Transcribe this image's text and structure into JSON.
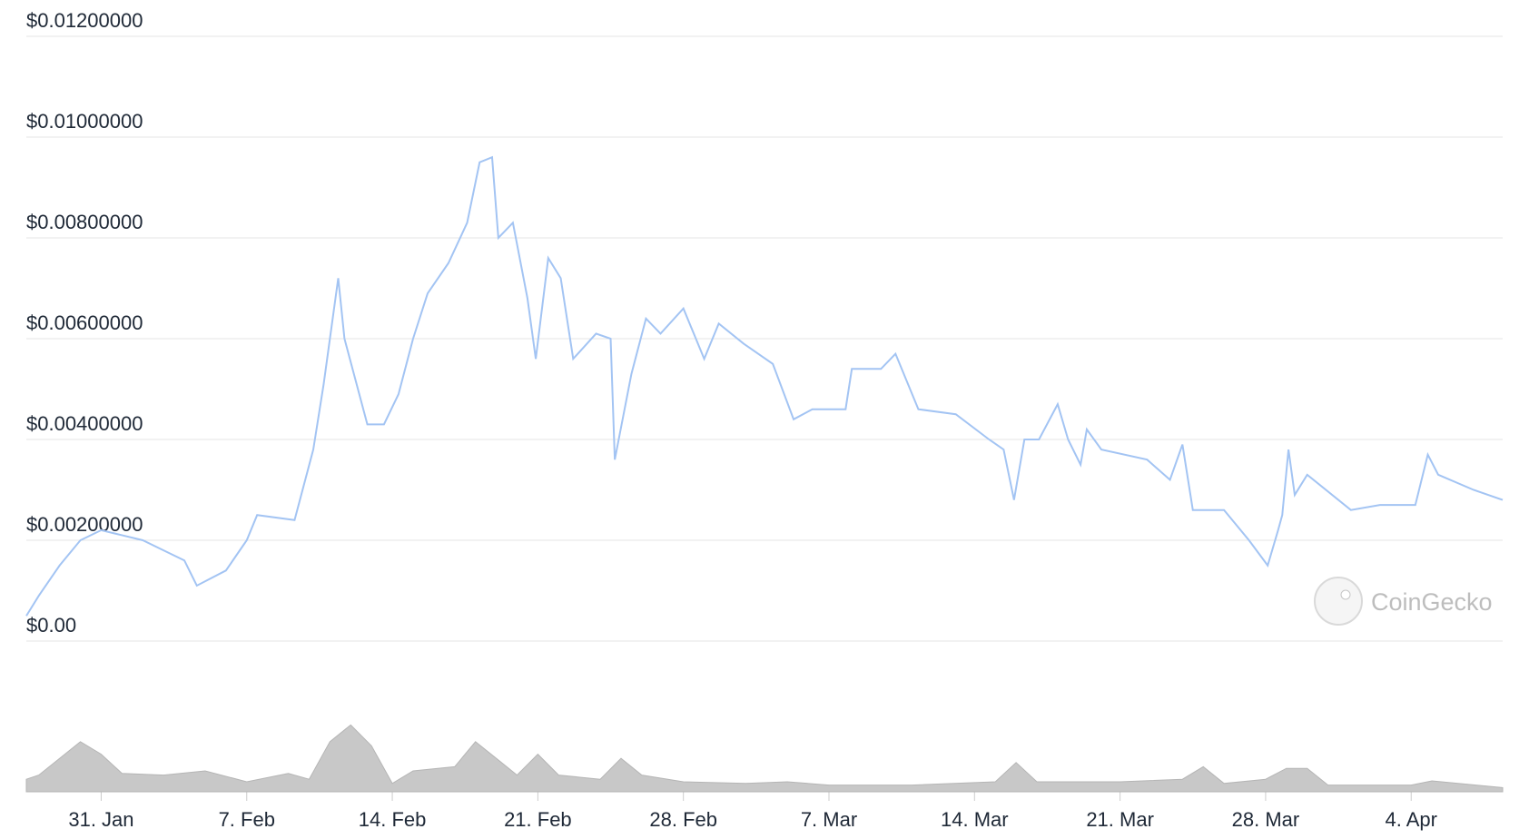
{
  "chart_data": {
    "type": "line",
    "watermark": "CoinGecko",
    "xlim": [
      27.4,
      98.4
    ],
    "xticks": [
      {
        "value": 31,
        "label": "31. Jan"
      },
      {
        "value": 38,
        "label": "7. Feb"
      },
      {
        "value": 45,
        "label": "14. Feb"
      },
      {
        "value": 52,
        "label": "21. Feb"
      },
      {
        "value": 59,
        "label": "28. Feb"
      },
      {
        "value": 66,
        "label": "7. Mar"
      },
      {
        "value": 73,
        "label": "14. Mar"
      },
      {
        "value": 80,
        "label": "21. Mar"
      },
      {
        "value": 87,
        "label": "28. Mar"
      },
      {
        "value": 94,
        "label": "4. Apr"
      }
    ],
    "ylim": [
      0,
      0.012
    ],
    "yticks": [
      {
        "value": 0,
        "label": "$0.00"
      },
      {
        "value": 0.002,
        "label": "$0.00200000"
      },
      {
        "value": 0.004,
        "label": "$0.00400000"
      },
      {
        "value": 0.006,
        "label": "$0.00600000"
      },
      {
        "value": 0.008,
        "label": "$0.00800000"
      },
      {
        "value": 0.01,
        "label": "$0.01000000"
      },
      {
        "value": 0.012,
        "label": "$0.01200000"
      }
    ],
    "y2lim": [
      0,
      100
    ],
    "grid": true,
    "series": [
      {
        "color": "#a3c4f3",
        "x": [
          27.4,
          28,
          29,
          30,
          31,
          32,
          33,
          34,
          35,
          35.6,
          37,
          38,
          38.5,
          40.3,
          41.2,
          41.7,
          42.4,
          42.7,
          43.8,
          44.6,
          45.3,
          46,
          46.7,
          47.7,
          48.6,
          49.2,
          49.8,
          50.1,
          50.8,
          51.5,
          51.9,
          52.5,
          53.1,
          53.7,
          54.8,
          55.5,
          55.7,
          56.5,
          57.2,
          57.9,
          59,
          60,
          60.7,
          61.9,
          63.3,
          64.3,
          65.2,
          66.8,
          67.1,
          68.5,
          69.2,
          70.3,
          72.1,
          73.7,
          74.4,
          74.9,
          75.4,
          76.1,
          77,
          77.5,
          78.1,
          78.4,
          79.1,
          81.3,
          82.4,
          83,
          83.5,
          85,
          86.2,
          87.1,
          87.6,
          87.8,
          88.1,
          88.4,
          89,
          91.1,
          92.5,
          94.2,
          94.8,
          95.3,
          97,
          98.4
        ],
        "values": [
          0.0005,
          0.0009,
          0.0015,
          0.002,
          0.0022,
          0.0021,
          0.002,
          0.0018,
          0.0016,
          0.0011,
          0.0014,
          0.002,
          0.0025,
          0.0024,
          0.0038,
          0.0051,
          0.0072,
          0.006,
          0.0043,
          0.0043,
          0.0049,
          0.006,
          0.0069,
          0.0075,
          0.0083,
          0.0095,
          0.0096,
          0.008,
          0.0083,
          0.0068,
          0.0056,
          0.0076,
          0.0072,
          0.0056,
          0.0061,
          0.006,
          0.0036,
          0.0053,
          0.0064,
          0.0061,
          0.0066,
          0.0056,
          0.0063,
          0.0059,
          0.0055,
          0.0044,
          0.0046,
          0.0046,
          0.0054,
          0.0054,
          0.0057,
          0.0046,
          0.0045,
          0.004,
          0.0038,
          0.0028,
          0.004,
          0.004,
          0.0047,
          0.004,
          0.0035,
          0.0042,
          0.0038,
          0.0036,
          0.0032,
          0.0039,
          0.0026,
          0.0026,
          0.002,
          0.0015,
          0.0022,
          0.0025,
          0.0038,
          0.0029,
          0.0033,
          0.0026,
          0.0027,
          0.0027,
          0.0037,
          0.0033,
          0.003,
          0.0028
        ]
      },
      {
        "color": "#c8c8c8",
        "axis": "y2",
        "x": [
          27.4,
          28,
          30,
          31,
          32,
          34,
          36,
          38,
          40,
          41,
          42,
          43,
          44,
          45,
          46,
          48,
          49,
          50,
          51,
          52,
          53,
          55,
          56,
          57,
          59,
          62,
          64,
          66,
          70,
          74,
          75,
          76,
          80,
          83,
          84,
          85,
          87,
          88,
          89,
          90,
          94,
          95,
          98.4
        ],
        "values": [
          15,
          20,
          60,
          45,
          22,
          20,
          25,
          12,
          22,
          15,
          60,
          80,
          55,
          10,
          25,
          30,
          60,
          40,
          20,
          45,
          20,
          15,
          40,
          20,
          12,
          10,
          12,
          8,
          8,
          12,
          35,
          12,
          12,
          15,
          30,
          10,
          15,
          28,
          28,
          8,
          8,
          13,
          5
        ]
      }
    ]
  }
}
